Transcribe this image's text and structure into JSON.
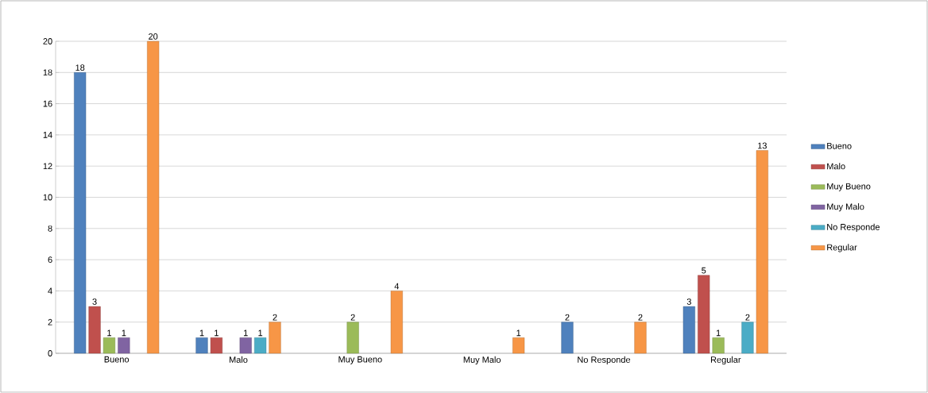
{
  "chart_data": {
    "type": "bar",
    "categories": [
      "Bueno",
      "Malo",
      "Muy Bueno",
      "Muy Malo",
      "No Responde",
      "Regular"
    ],
    "series": [
      {
        "name": "Bueno",
        "color": "#4f81bd",
        "values": [
          18,
          1,
          null,
          null,
          2,
          3
        ]
      },
      {
        "name": "Malo",
        "color": "#c0504d",
        "values": [
          3,
          1,
          null,
          null,
          null,
          5
        ]
      },
      {
        "name": "Muy Bueno",
        "color": "#9bbb59",
        "values": [
          1,
          null,
          2,
          null,
          null,
          1
        ]
      },
      {
        "name": "Muy Malo",
        "color": "#8064a2",
        "values": [
          1,
          1,
          null,
          null,
          null,
          null
        ]
      },
      {
        "name": "No Responde",
        "color": "#4bacc6",
        "values": [
          null,
          1,
          null,
          null,
          null,
          2
        ]
      },
      {
        "name": "Regular",
        "color": "#f79646",
        "values": [
          20,
          2,
          4,
          1,
          2,
          13
        ]
      }
    ],
    "ylim": [
      0,
      20
    ],
    "yticks": [
      0,
      2,
      4,
      6,
      8,
      10,
      12,
      14,
      16,
      18,
      20
    ],
    "grid": "y",
    "legend": "right",
    "data_labels": true
  }
}
